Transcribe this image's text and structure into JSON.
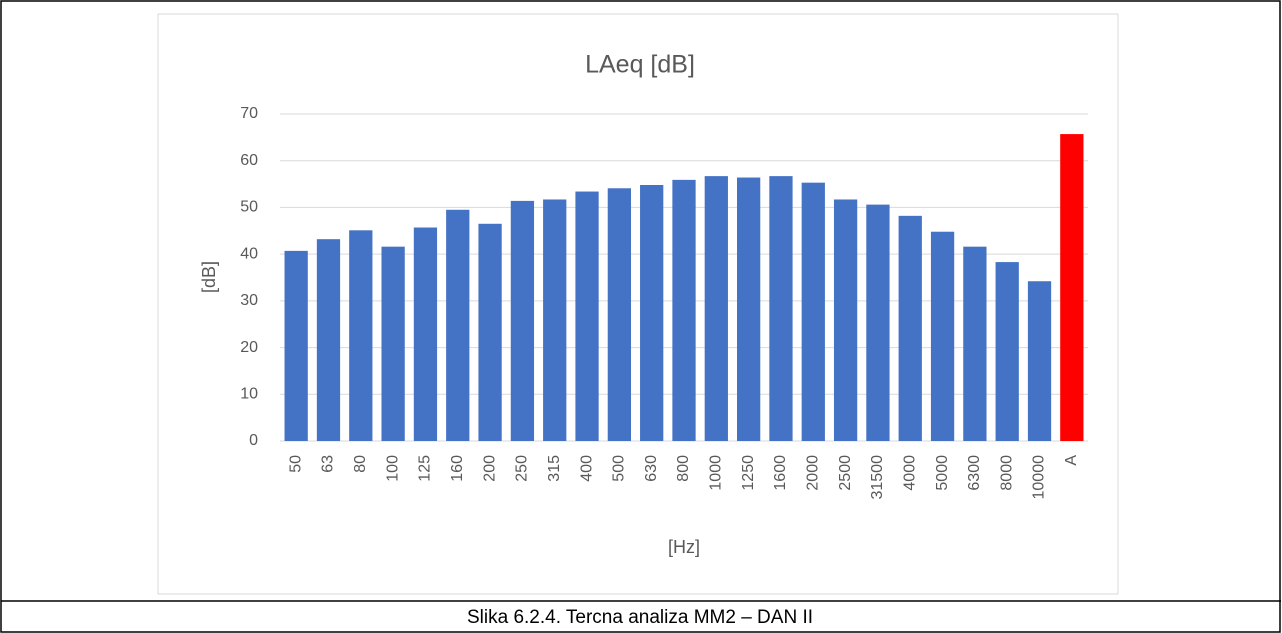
{
  "chart_data": {
    "type": "bar",
    "title": "LAeq [dB]",
    "ylabel": "[dB]",
    "xlabel": "[Hz]",
    "categories": [
      "50",
      "63",
      "80",
      "100",
      "125",
      "160",
      "200",
      "250",
      "315",
      "400",
      "500",
      "630",
      "800",
      "1000",
      "1250",
      "1600",
      "2000",
      "2500",
      "31500",
      "4000",
      "5000",
      "6300",
      "8000",
      "10000",
      "A"
    ],
    "values": [
      40.7,
      43.2,
      45.1,
      41.6,
      45.7,
      49.5,
      46.5,
      51.4,
      51.7,
      53.4,
      54.1,
      54.8,
      55.9,
      56.7,
      56.4,
      56.7,
      55.3,
      51.7,
      50.6,
      48.2,
      44.8,
      41.6,
      38.3,
      34.2,
      65.7
    ],
    "colors": [
      "#4472c4",
      "#4472c4",
      "#4472c4",
      "#4472c4",
      "#4472c4",
      "#4472c4",
      "#4472c4",
      "#4472c4",
      "#4472c4",
      "#4472c4",
      "#4472c4",
      "#4472c4",
      "#4472c4",
      "#4472c4",
      "#4472c4",
      "#4472c4",
      "#4472c4",
      "#4472c4",
      "#4472c4",
      "#4472c4",
      "#4472c4",
      "#4472c4",
      "#4472c4",
      "#4472c4",
      "#ff0000"
    ],
    "ylim": [
      0,
      70
    ],
    "yticks": [
      0,
      10,
      20,
      30,
      40,
      50,
      60,
      70
    ],
    "grid": true
  },
  "caption": "Slika 6.2.4. Tercna analiza MM2 – DAN II"
}
